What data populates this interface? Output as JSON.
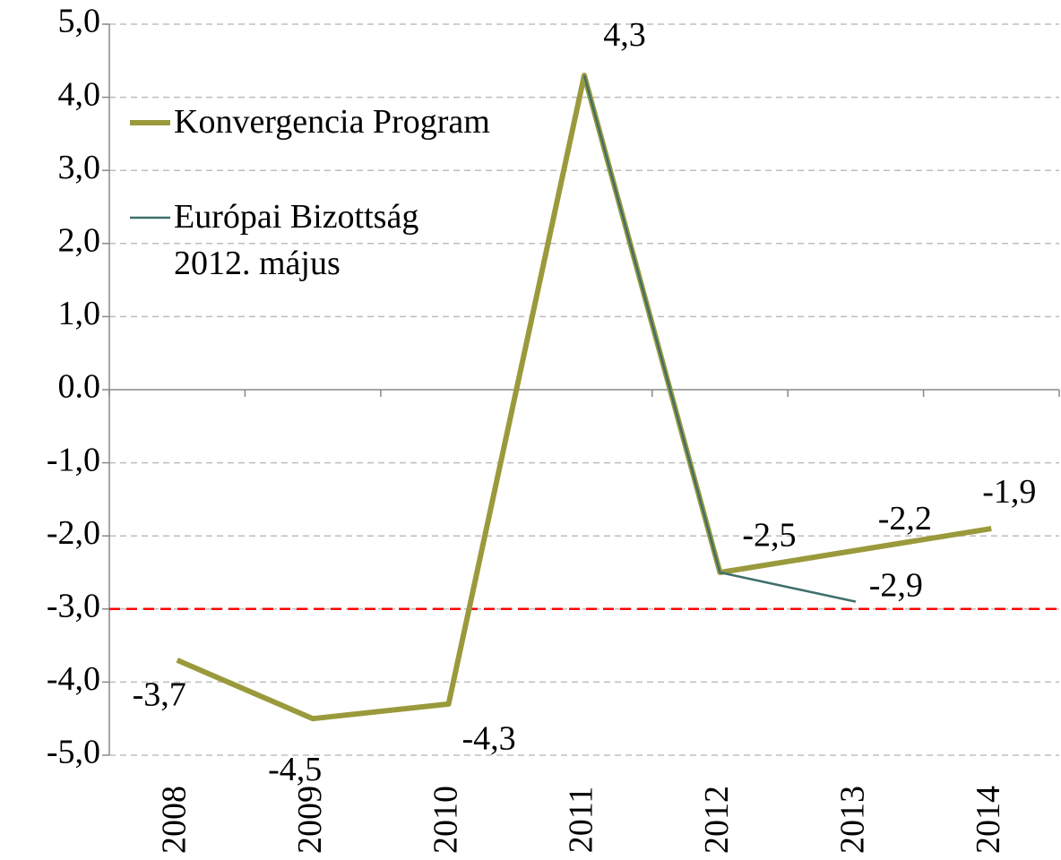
{
  "chart_data": {
    "type": "line",
    "categories": [
      "2008",
      "2009",
      "2010",
      "2011",
      "2012",
      "2013",
      "2014"
    ],
    "series": [
      {
        "name": "Konvergencia Program",
        "color": "#9a9a3c",
        "values": [
          -3.7,
          -4.5,
          -4.3,
          4.3,
          -2.5,
          -2.2,
          -1.9
        ],
        "value_labels": [
          "-3,7",
          "-4,5",
          "-4,3",
          "4,3",
          "-2,5",
          "-2,2",
          "-1,9"
        ]
      },
      {
        "name": "Európai Bizottság 2012. május",
        "color": "#3f6f6c",
        "values": [
          null,
          null,
          null,
          4.3,
          -2.5,
          -2.9,
          null
        ],
        "value_labels": [
          null,
          null,
          null,
          null,
          null,
          "-2,9",
          null
        ]
      }
    ],
    "ylim": [
      -5,
      5
    ],
    "yticks": [
      {
        "value": -5,
        "label": "-5,0"
      },
      {
        "value": -4,
        "label": "-4,0"
      },
      {
        "value": -3,
        "label": "-3,0"
      },
      {
        "value": -2,
        "label": "-2,0"
      },
      {
        "value": -1,
        "label": "-1,0"
      },
      {
        "value": 0,
        "label": "0.0"
      },
      {
        "value": 1,
        "label": "1,0"
      },
      {
        "value": 2,
        "label": "2,0"
      },
      {
        "value": 3,
        "label": "3,0"
      },
      {
        "value": 4,
        "label": "4,0"
      },
      {
        "value": 5,
        "label": "5,0"
      }
    ],
    "grid": true,
    "hlines": [
      {
        "value": -3,
        "color": "#ff0000"
      }
    ],
    "legend": "upper left"
  }
}
